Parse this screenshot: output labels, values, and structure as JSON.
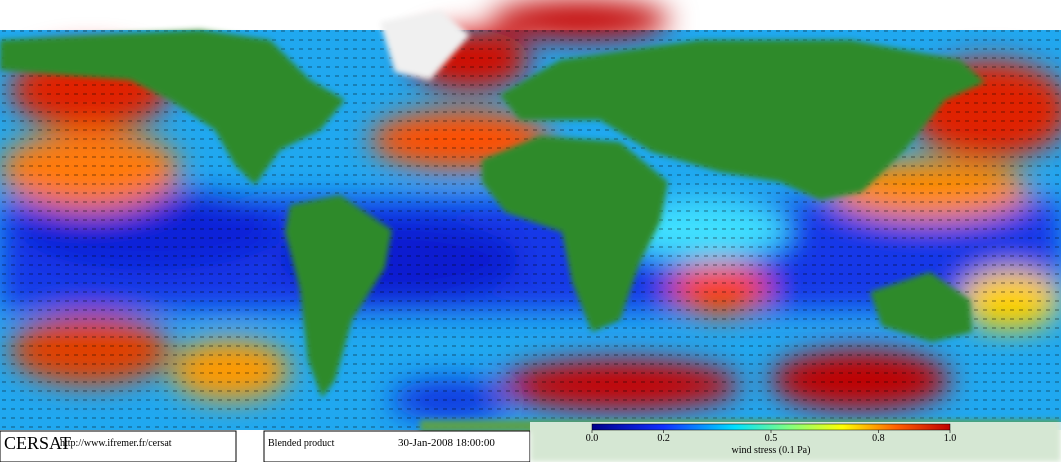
{
  "footer": {
    "logo": "CERSAT",
    "url": "http://www.ifremer.fr/cersat",
    "product": "Blended product",
    "date": "30-Jan-2008 18:00:00"
  },
  "colorbar": {
    "label": "wind stress (0.1 Pa)",
    "range": [
      0,
      1
    ],
    "ticks": [
      {
        "value": 0,
        "label": "0.0"
      },
      {
        "value": 0.2,
        "label": "0.2"
      },
      {
        "value": 0.5,
        "label": "0.5"
      },
      {
        "value": 0.8,
        "label": "0.8"
      },
      {
        "value": 1,
        "label": "1.0"
      }
    ]
  }
}
